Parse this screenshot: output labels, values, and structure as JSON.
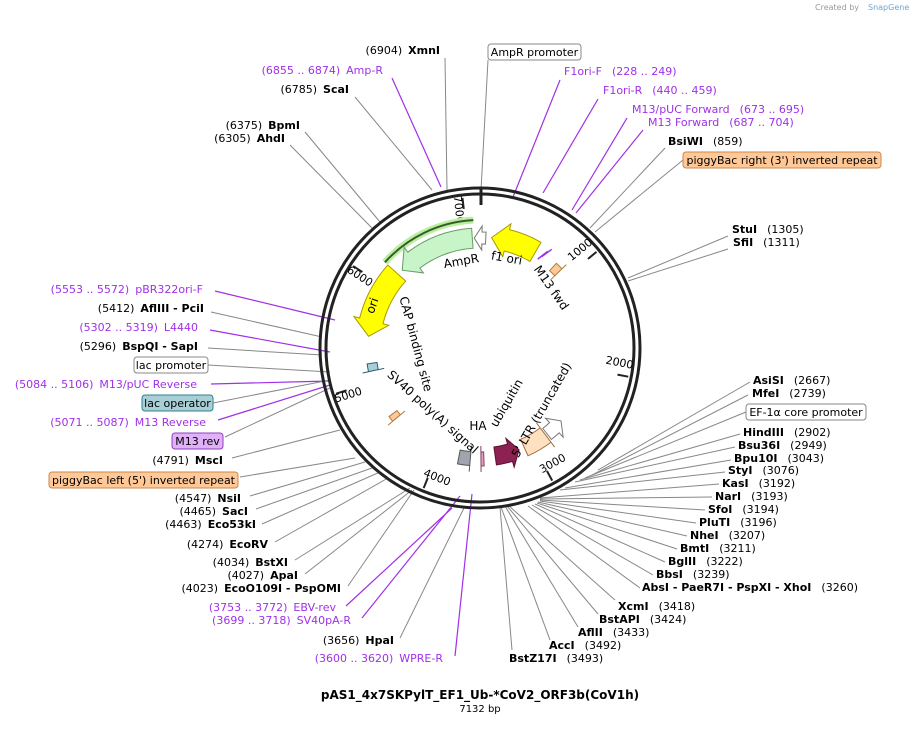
{
  "credit": "Created by",
  "brand": "SnapGene",
  "title": "pAS1_4x7SKPylT_EF1_Ub-*CoV2_ORF3b(CoV1h)",
  "length": "7132 bp",
  "ticks": [
    "1000",
    "2000",
    "3000",
    "4000",
    "5000",
    "6000",
    "7000"
  ],
  "features": {
    "ampr": "AmpR",
    "f1ori": "f1 ori",
    "m13fwd": "M13 fwd",
    "ori": "ori",
    "cap": "CAP binding site",
    "sv40": "SV40 poly(A) signal",
    "ha": "HA",
    "ubq": "ubiquitin",
    "ltr": "5' LTR (truncated)"
  },
  "boxes": {
    "ampr_prom": "AmpR promoter",
    "pb_right": "piggyBac right (3') inverted repeat",
    "lac_prom": "lac promoter",
    "lac_op": "lac operator",
    "m13rev": "M13 rev",
    "pb_left": "piggyBac left (5') inverted repeat",
    "ef1a": "EF-1α core promoter"
  },
  "labels": [
    {
      "num": "(6904)",
      "name": "XmnI"
    },
    {
      "num": "(6855 .. 6874)",
      "name": "Amp-R"
    },
    {
      "num": "(6785)",
      "name": "ScaI"
    },
    {
      "num": "(6375)",
      "name": "BpmI"
    },
    {
      "num": "(6305)",
      "name": "AhdI"
    },
    {
      "num": "(228 .. 249)",
      "name": "F1ori-F"
    },
    {
      "num": "(440 .. 459)",
      "name": "F1ori-R"
    },
    {
      "num": "(673 .. 695)",
      "name": "M13/pUC Forward"
    },
    {
      "num": "(687 .. 704)",
      "name": "M13 Forward"
    },
    {
      "num": "(859)",
      "name": "BsiWI"
    },
    {
      "num": "(1305)",
      "name": "StuI"
    },
    {
      "num": "(1311)",
      "name": "SfiI"
    },
    {
      "num": "(5553 .. 5572)",
      "name": "pBR322ori-F"
    },
    {
      "num": "(5412)",
      "name": "AflIII   - PciI"
    },
    {
      "num": "(5302 .. 5319)",
      "name": "L4440"
    },
    {
      "num": "(5296)",
      "name": "BspQI   - SapI"
    },
    {
      "num": "(5084 .. 5106)",
      "name": "M13/pUC Reverse"
    },
    {
      "num": "(5071 .. 5087)",
      "name": "M13 Reverse"
    },
    {
      "num": "(4791)",
      "name": "MscI"
    },
    {
      "num": "(4547)",
      "name": "NsiI"
    },
    {
      "num": "(4465)",
      "name": "SacI"
    },
    {
      "num": "(4463)",
      "name": "Eco53kI"
    },
    {
      "num": "(4274)",
      "name": "EcoRV"
    },
    {
      "num": "(4034)",
      "name": "BstXI"
    },
    {
      "num": "(4027)",
      "name": "ApaI"
    },
    {
      "num": "(4023)",
      "name": "EcoO109I   - PspOMI"
    },
    {
      "num": "(3753 .. 3772)",
      "name": "EBV-rev"
    },
    {
      "num": "(3699 .. 3718)",
      "name": "SV40pA-R"
    },
    {
      "num": "(3656)",
      "name": "HpaI"
    },
    {
      "num": "(3600 .. 3620)",
      "name": "WPRE-R"
    },
    {
      "num": "(3493)",
      "name": "BstZ17I"
    },
    {
      "num": "(3492)",
      "name": "AccI"
    },
    {
      "num": "(3433)",
      "name": "AflII"
    },
    {
      "num": "(3424)",
      "name": "BstAPI"
    },
    {
      "num": "(3418)",
      "name": "XcmI"
    },
    {
      "num": "(2667)",
      "name": "AsiSI"
    },
    {
      "num": "(2739)",
      "name": "MfeI"
    },
    {
      "num": "(2902)",
      "name": "HindIII"
    },
    {
      "num": "(2949)",
      "name": "Bsu36I"
    },
    {
      "num": "(3043)",
      "name": "Bpu10I"
    },
    {
      "num": "(3076)",
      "name": "StyI"
    },
    {
      "num": "(3192)",
      "name": "KasI"
    },
    {
      "num": "(3193)",
      "name": "NarI"
    },
    {
      "num": "(3194)",
      "name": "SfoI"
    },
    {
      "num": "(3196)",
      "name": "PluTI"
    },
    {
      "num": "(3207)",
      "name": "NheI"
    },
    {
      "num": "(3211)",
      "name": "BmtI"
    },
    {
      "num": "(3222)",
      "name": "BglII"
    },
    {
      "num": "(3239)",
      "name": "BbsI"
    },
    {
      "num": "(3260)",
      "name": "AbsI   - PaeR7I   - PspXI   - XhoI"
    }
  ],
  "colors": {
    "primer": "#a030e8",
    "ampr": "#c8f5c8",
    "ori": "#ffff00",
    "ubq": "#ffe0c0",
    "ha": "#e8a0c0",
    "maroon": "#8b2252",
    "grey": "#a0a4ac",
    "orange": "#ffc896",
    "laco": "#a8cfd6",
    "m13rev": "#e0b0f8"
  }
}
